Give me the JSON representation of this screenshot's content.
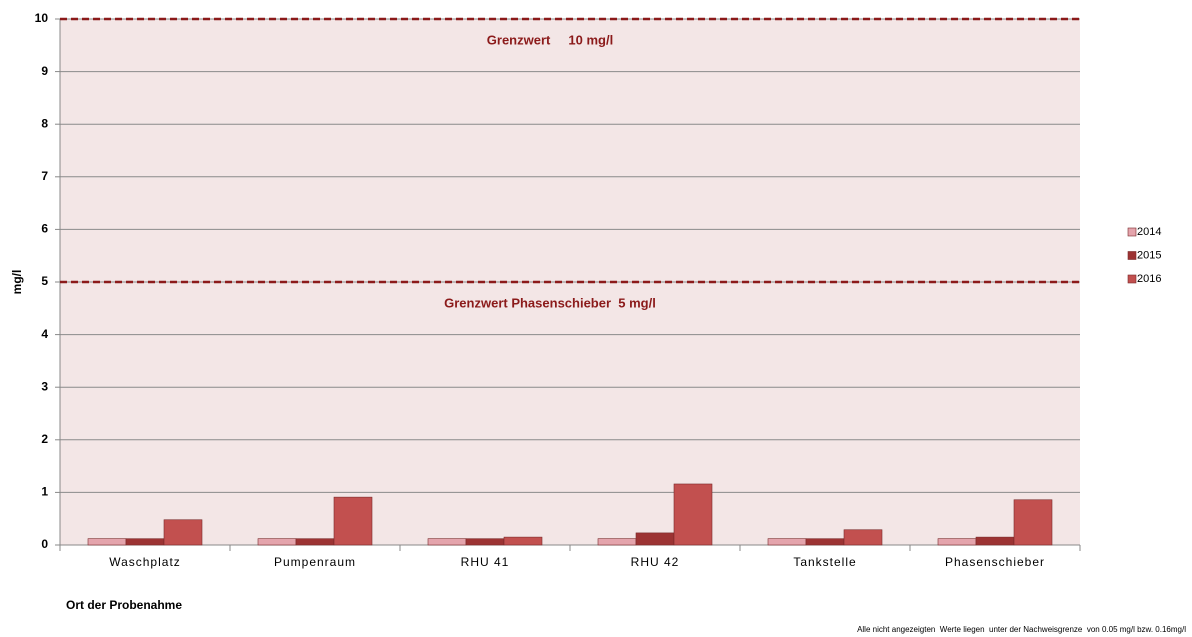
{
  "chart_data": {
    "type": "bar",
    "categories": [
      "Waschplatz",
      "Pumpenraum",
      "RHU 41",
      "RHU 42",
      "Tankstelle",
      "Phasenschieber"
    ],
    "series": [
      {
        "name": "2014",
        "color": "#e4a4ac",
        "values": [
          0.12,
          0.12,
          0.12,
          0.12,
          0.12,
          0.12
        ]
      },
      {
        "name": "2015",
        "color": "#9c3333",
        "values": [
          0.12,
          0.12,
          0.12,
          0.23,
          0.12,
          0.15
        ]
      },
      {
        "name": "2016",
        "color": "#c2504f",
        "values": [
          0.48,
          0.91,
          0.15,
          1.16,
          0.29,
          0.86
        ]
      }
    ],
    "ylim": [
      0,
      10
    ],
    "yticks": [
      0,
      1,
      2,
      3,
      4,
      5,
      6,
      7,
      8,
      9,
      10
    ],
    "grid": true,
    "y_label": "mg/l",
    "x_label": "Ort der Probenahme",
    "legend": "right",
    "reference_lines": [
      {
        "value": 10,
        "label": "Grenzwert     10 mg/l",
        "color": "#8b1a1a"
      },
      {
        "value": 5,
        "label": "Grenzwert Phasenschieber  5 mg/l",
        "color": "#8b1a1a"
      }
    ],
    "footnote": "Alle nicht angezeigten  Werte liegen  unter der Nachweisgrenze  von 0.05 mg/l bzw. 0.16mg/l"
  }
}
